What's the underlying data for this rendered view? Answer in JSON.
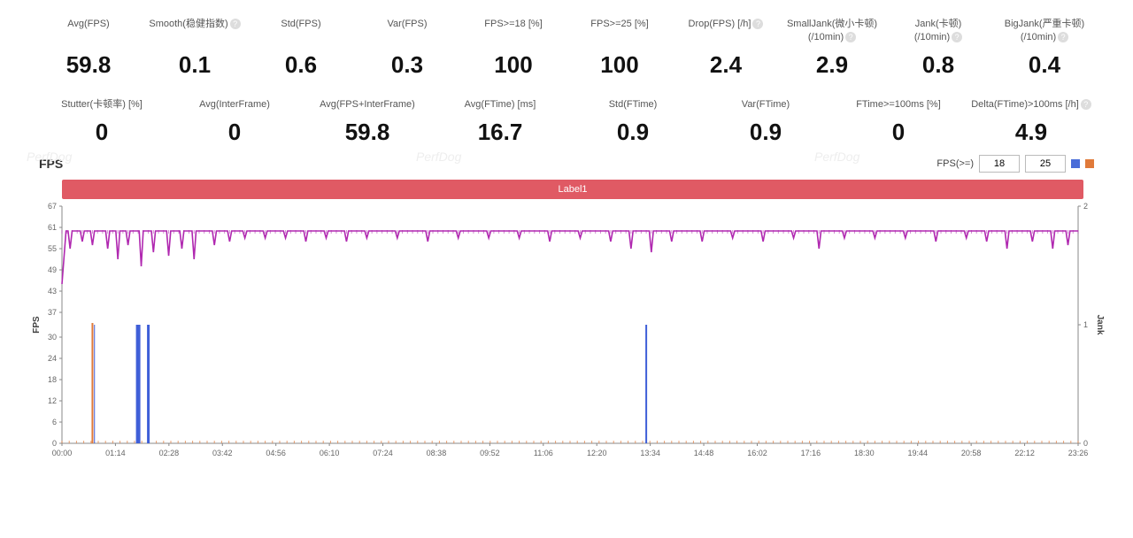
{
  "metrics_row1": [
    {
      "label": "Avg(FPS)",
      "value": "59.8",
      "help": false
    },
    {
      "label": "Smooth(稳健指数)",
      "value": "0.1",
      "help": true
    },
    {
      "label": "Std(FPS)",
      "value": "0.6",
      "help": false
    },
    {
      "label": "Var(FPS)",
      "value": "0.3",
      "help": false
    },
    {
      "label": "FPS>=18 [%]",
      "value": "100",
      "help": false
    },
    {
      "label": "FPS>=25 [%]",
      "value": "100",
      "help": false
    },
    {
      "label": "Drop(FPS) [/h]",
      "value": "2.4",
      "help": true
    },
    {
      "label": "SmallJank(微小卡顿)\n(/10min)",
      "value": "2.9",
      "help": true
    },
    {
      "label": "Jank(卡顿)\n(/10min)",
      "value": "0.8",
      "help": true
    },
    {
      "label": "BigJank(严重卡顿)\n(/10min)",
      "value": "0.4",
      "help": true
    }
  ],
  "metrics_row2": [
    {
      "label": "Stutter(卡顿率) [%]",
      "value": "0",
      "help": false
    },
    {
      "label": "Avg(InterFrame)",
      "value": "0",
      "help": false
    },
    {
      "label": "Avg(FPS+InterFrame)",
      "value": "59.8",
      "help": false
    },
    {
      "label": "Avg(FTime) [ms]",
      "value": "16.7",
      "help": false
    },
    {
      "label": "Std(FTime)",
      "value": "0.9",
      "help": false
    },
    {
      "label": "Var(FTime)",
      "value": "0.9",
      "help": false
    },
    {
      "label": "FTime>=100ms [%]",
      "value": "0",
      "help": false
    },
    {
      "label": "Delta(FTime)>100ms [/h]",
      "value": "4.9",
      "help": true
    }
  ],
  "chart": {
    "title": "FPS",
    "label_bar": "Label1",
    "controls": {
      "prefix": "FPS(>=)",
      "val1": "18",
      "val2": "25"
    },
    "swatches": [
      "#4a6dd8",
      "#e07a3a"
    ],
    "watermark": "PerfDog",
    "left_axis": {
      "title": "FPS",
      "min": 0,
      "max": 67,
      "ticks": [
        0,
        6,
        12,
        18,
        24,
        30,
        37,
        43,
        49,
        55,
        61,
        67
      ]
    },
    "right_axis": {
      "title": "Jank",
      "min": 0,
      "max": 2,
      "ticks": [
        0,
        1,
        2
      ]
    },
    "x_labels": [
      "00:00",
      "01:14",
      "02:28",
      "03:42",
      "04:56",
      "06:10",
      "07:24",
      "08:38",
      "09:52",
      "11:06",
      "12:20",
      "13:34",
      "14:48",
      "16:02",
      "17:16",
      "18:30",
      "19:44",
      "20:58",
      "22:12",
      "23:26"
    ],
    "colors": {
      "fps_line": "#b028b0",
      "jank_bar": "#3f5fd8",
      "baseline": "#e07a3a",
      "grid": "#e9e9e9",
      "axis": "#888"
    },
    "fps_baseline": 60,
    "fps_dip_start": 45,
    "fps_dips": [
      {
        "x": 0.008,
        "low": 55
      },
      {
        "x": 0.02,
        "low": 57
      },
      {
        "x": 0.03,
        "low": 56
      },
      {
        "x": 0.045,
        "low": 55
      },
      {
        "x": 0.055,
        "low": 52
      },
      {
        "x": 0.065,
        "low": 56
      },
      {
        "x": 0.078,
        "low": 50
      },
      {
        "x": 0.09,
        "low": 54
      },
      {
        "x": 0.105,
        "low": 53
      },
      {
        "x": 0.118,
        "low": 55
      },
      {
        "x": 0.13,
        "low": 52
      },
      {
        "x": 0.15,
        "low": 56
      },
      {
        "x": 0.165,
        "low": 57
      },
      {
        "x": 0.18,
        "low": 58
      },
      {
        "x": 0.2,
        "low": 58
      },
      {
        "x": 0.22,
        "low": 58
      },
      {
        "x": 0.24,
        "low": 57
      },
      {
        "x": 0.26,
        "low": 58
      },
      {
        "x": 0.28,
        "low": 57
      },
      {
        "x": 0.3,
        "low": 58
      },
      {
        "x": 0.33,
        "low": 58
      },
      {
        "x": 0.36,
        "low": 57
      },
      {
        "x": 0.39,
        "low": 58
      },
      {
        "x": 0.42,
        "low": 58
      },
      {
        "x": 0.45,
        "low": 58
      },
      {
        "x": 0.48,
        "low": 57
      },
      {
        "x": 0.51,
        "low": 58
      },
      {
        "x": 0.54,
        "low": 57
      },
      {
        "x": 0.56,
        "low": 55
      },
      {
        "x": 0.58,
        "low": 54
      },
      {
        "x": 0.6,
        "low": 57
      },
      {
        "x": 0.63,
        "low": 57
      },
      {
        "x": 0.66,
        "low": 58
      },
      {
        "x": 0.69,
        "low": 57
      },
      {
        "x": 0.72,
        "low": 58
      },
      {
        "x": 0.745,
        "low": 55
      },
      {
        "x": 0.77,
        "low": 58
      },
      {
        "x": 0.8,
        "low": 58
      },
      {
        "x": 0.83,
        "low": 58
      },
      {
        "x": 0.86,
        "low": 57
      },
      {
        "x": 0.89,
        "low": 58
      },
      {
        "x": 0.91,
        "low": 57
      },
      {
        "x": 0.93,
        "low": 55
      },
      {
        "x": 0.955,
        "low": 57
      },
      {
        "x": 0.975,
        "low": 55
      },
      {
        "x": 0.99,
        "low": 56
      }
    ],
    "jank_spikes": [
      {
        "x": 0.032,
        "h": 1.0,
        "w": 1
      },
      {
        "x": 0.075,
        "h": 1.0,
        "w": 5
      },
      {
        "x": 0.085,
        "h": 1.0,
        "w": 3
      },
      {
        "x": 0.575,
        "h": 1.0,
        "w": 2
      }
    ],
    "baseline_ticks_density": 140
  }
}
